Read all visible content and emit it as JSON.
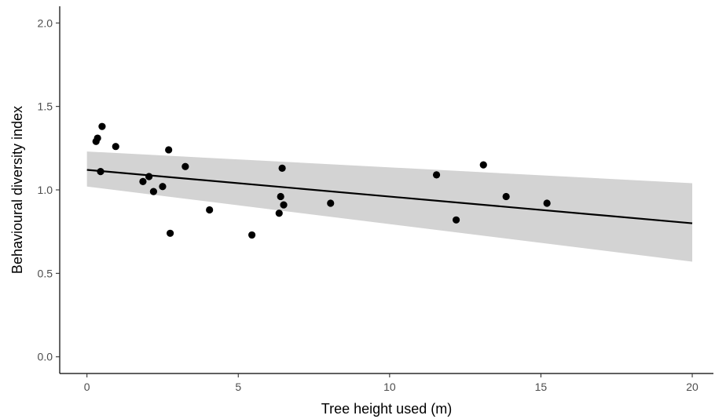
{
  "chart_data": {
    "type": "scatter",
    "title": "",
    "xlabel": "Tree height used (m)",
    "ylabel": "Behavioural diversity index",
    "xlim": [
      -0.9,
      20.7
    ],
    "ylim": [
      -0.1,
      2.1
    ],
    "x_ticks": [
      0,
      5,
      10,
      15,
      20
    ],
    "x_tick_labels": [
      "0",
      "5",
      "10",
      "15",
      "20"
    ],
    "y_ticks": [
      0.0,
      0.5,
      1.0,
      1.5,
      2.0
    ],
    "y_tick_labels": [
      "0.0",
      "0.5",
      "1.0",
      "1.5",
      "2.0"
    ],
    "grid": false,
    "legend": "none",
    "colors": {
      "point": "#000000",
      "line": "#000000",
      "ribbon": "#d3d3d3",
      "axis": "#000000",
      "tick_text": "#4d4d4d"
    },
    "points": [
      {
        "x": 0.3,
        "y": 1.29
      },
      {
        "x": 0.35,
        "y": 1.31
      },
      {
        "x": 0.5,
        "y": 1.38
      },
      {
        "x": 0.45,
        "y": 1.11
      },
      {
        "x": 0.95,
        "y": 1.26
      },
      {
        "x": 1.85,
        "y": 1.05
      },
      {
        "x": 2.05,
        "y": 1.08
      },
      {
        "x": 2.2,
        "y": 0.99
      },
      {
        "x": 2.5,
        "y": 1.02
      },
      {
        "x": 2.7,
        "y": 1.24
      },
      {
        "x": 2.75,
        "y": 0.74
      },
      {
        "x": 3.25,
        "y": 1.14
      },
      {
        "x": 4.05,
        "y": 0.88
      },
      {
        "x": 5.45,
        "y": 0.73
      },
      {
        "x": 6.35,
        "y": 0.86
      },
      {
        "x": 6.4,
        "y": 0.96
      },
      {
        "x": 6.45,
        "y": 1.13
      },
      {
        "x": 6.5,
        "y": 0.91
      },
      {
        "x": 8.05,
        "y": 0.92
      },
      {
        "x": 11.55,
        "y": 1.09
      },
      {
        "x": 12.2,
        "y": 0.82
      },
      {
        "x": 13.1,
        "y": 1.15
      },
      {
        "x": 13.85,
        "y": 0.96
      },
      {
        "x": 15.2,
        "y": 0.92
      }
    ],
    "fit": {
      "x": [
        0,
        20
      ],
      "y": [
        1.12,
        0.8
      ],
      "lower": [
        1.02,
        0.57
      ],
      "upper": [
        1.23,
        1.04
      ]
    }
  }
}
